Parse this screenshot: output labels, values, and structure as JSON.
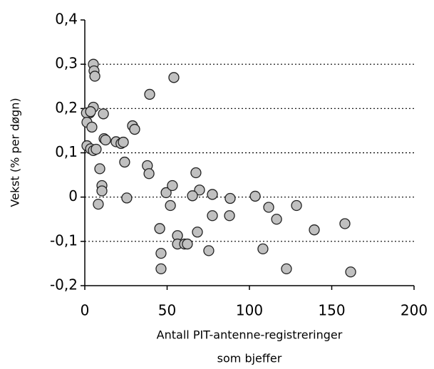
{
  "chart_data": {
    "type": "scatter",
    "xlabel": [
      "Antall PIT-antenne-registreringer",
      "som bjeffer"
    ],
    "ylabel": "Vekst (% per døgn)",
    "color": "#c0c0c0",
    "grid": true,
    "xlim": [
      0,
      200
    ],
    "xticks": [
      0,
      50,
      100,
      150,
      200
    ],
    "ylim": [
      -0.2,
      0.4
    ],
    "yticks": [
      {
        "value": -0.2,
        "label": "-0,2"
      },
      {
        "value": -0.1,
        "label": "-0,1"
      },
      0,
      {
        "value": 0.1,
        "label": "0,1"
      },
      {
        "value": 0.2,
        "label": "0,2"
      },
      {
        "value": 0.3,
        "label": "0,3"
      },
      {
        "value": 0.4,
        "label": "0,4"
      }
    ],
    "x": [
      5.2,
      5.6,
      6.1,
      5.2,
      3,
      1,
      3.5,
      11.3,
      1.3,
      4.3,
      1.3,
      3.5,
      5.2,
      6.9,
      11.7,
      12.6,
      19,
      22,
      23.4,
      29,
      30.3,
      39.4,
      54.1,
      24.2,
      9.1,
      38,
      39,
      10.4,
      10.4,
      8.2,
      25.5,
      49.4,
      53.2,
      52,
      67.5,
      69.7,
      65.4,
      77.5,
      88.3,
      77.5,
      87.9,
      68.4,
      45.5,
      56.3,
      56.3,
      60.6,
      62.3,
      46.3,
      75.3,
      46.3,
      103.5,
      111.7,
      116.5,
      128.6,
      108.2,
      122.5,
      139.4,
      158,
      161.5
    ],
    "values": [
      0.3,
      0.285,
      0.273,
      0.203,
      0.19,
      0.19,
      0.193,
      0.188,
      0.169,
      0.158,
      0.116,
      0.109,
      0.105,
      0.108,
      0.132,
      0.129,
      0.125,
      0.121,
      0.124,
      0.161,
      0.153,
      0.232,
      0.27,
      0.079,
      0.064,
      0.071,
      0.053,
      0.026,
      0.014,
      -0.016,
      -0.002,
      0.01,
      0.026,
      -0.019,
      0.055,
      0.016,
      0.003,
      0.006,
      -0.003,
      -0.042,
      -0.042,
      -0.079,
      -0.071,
      -0.087,
      -0.106,
      -0.106,
      -0.106,
      -0.127,
      -0.121,
      -0.162,
      0.002,
      -0.023,
      -0.05,
      -0.019,
      -0.117,
      -0.162,
      -0.074,
      -0.06,
      -0.169
    ]
  }
}
